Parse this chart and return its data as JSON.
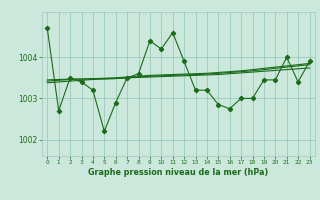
{
  "xlabel": "Graphe pression niveau de la mer (hPa)",
  "background_color": "#cce8dc",
  "grid_color": "#99ccbb",
  "line_color": "#1a6b1a",
  "text_color": "#1a6b1a",
  "x_values": [
    0,
    1,
    2,
    3,
    4,
    5,
    6,
    7,
    8,
    9,
    10,
    11,
    12,
    13,
    14,
    15,
    16,
    17,
    18,
    19,
    20,
    21,
    22,
    23
  ],
  "main_series": [
    1004.7,
    1002.7,
    1003.5,
    1003.4,
    1003.2,
    1002.2,
    1002.9,
    1003.5,
    1003.6,
    1004.4,
    1004.2,
    1004.6,
    1003.9,
    1003.2,
    1003.2,
    1002.85,
    1002.75,
    1003.0,
    1003.0,
    1003.45,
    1003.45,
    1004.0,
    1003.4,
    1003.9
  ],
  "smooth_series1": [
    1003.45,
    1003.46,
    1003.47,
    1003.47,
    1003.48,
    1003.48,
    1003.49,
    1003.5,
    1003.51,
    1003.52,
    1003.53,
    1003.54,
    1003.55,
    1003.56,
    1003.57,
    1003.58,
    1003.6,
    1003.62,
    1003.64,
    1003.66,
    1003.68,
    1003.7,
    1003.72,
    1003.74
  ],
  "smooth_series2": [
    1003.42,
    1003.44,
    1003.46,
    1003.47,
    1003.48,
    1003.49,
    1003.5,
    1003.52,
    1003.54,
    1003.56,
    1003.57,
    1003.58,
    1003.59,
    1003.6,
    1003.61,
    1003.63,
    1003.65,
    1003.67,
    1003.7,
    1003.73,
    1003.76,
    1003.79,
    1003.82,
    1003.85
  ],
  "smooth_series3": [
    1003.38,
    1003.4,
    1003.42,
    1003.44,
    1003.46,
    1003.47,
    1003.48,
    1003.5,
    1003.52,
    1003.54,
    1003.55,
    1003.56,
    1003.57,
    1003.58,
    1003.59,
    1003.61,
    1003.63,
    1003.65,
    1003.67,
    1003.7,
    1003.73,
    1003.76,
    1003.79,
    1003.82
  ],
  "ylim": [
    1001.6,
    1005.1
  ],
  "yticks": [
    1002,
    1003,
    1004
  ],
  "xlim": [
    -0.5,
    23.5
  ]
}
